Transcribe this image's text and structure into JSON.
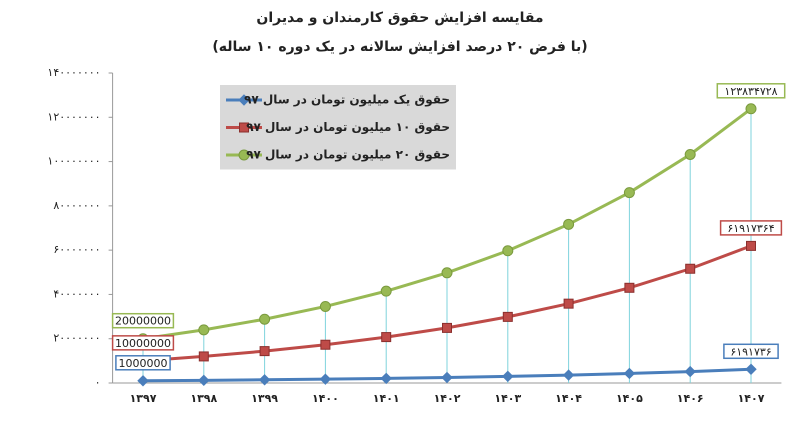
{
  "chart_data": {
    "type": "line",
    "title": "مقایسه افزایش حقوق کارمندان و مدیران",
    "subtitle": "(با فرض ۲۰ درصد افزایش سالانه در یک دوره ۱۰ ساله)",
    "categories": [
      "۱۳۹۷",
      "۱۳۹۸",
      "۱۳۹۹",
      "۱۴۰۰",
      "۱۴۰۱",
      "۱۴۰۲",
      "۱۴۰۳",
      "۱۴۰۴",
      "۱۴۰۵",
      "۱۴۰۶",
      "۱۴۰۷"
    ],
    "series": [
      {
        "name": "حقوق یک میلیون تومان در سال ۹۷",
        "color": "#4a7ebb",
        "marker": "diamond",
        "values": [
          1000000,
          1200000,
          1440000,
          1728000,
          2073600,
          2488320,
          2985984,
          3583181,
          4299817,
          5159780,
          6191736
        ],
        "value_labels": [
          "1000000",
          null,
          null,
          null,
          null,
          null,
          null,
          null,
          null,
          null,
          "۶۱۹۱۷۳۶"
        ]
      },
      {
        "name": "حقوق ۱۰ میلیون تومان در سال ۹۷",
        "color": "#be4b48",
        "marker": "square",
        "values": [
          10000000,
          12000000,
          14400000,
          17280000,
          20736000,
          24883200,
          29859840,
          35831808,
          42998170,
          51597804,
          61917364
        ],
        "value_labels": [
          "10000000",
          null,
          null,
          null,
          null,
          null,
          null,
          null,
          null,
          null,
          "۶۱۹۱۷۳۶۴"
        ]
      },
      {
        "name": "حقوق ۲۰ میلیون تومان در سال ۹۷",
        "color": "#98b954",
        "marker": "circle",
        "values": [
          20000000,
          24000000,
          28800000,
          34560000,
          41472000,
          49766400,
          59719680,
          71663616,
          85996339,
          103195607,
          123834728
        ],
        "value_labels": [
          "20000000",
          null,
          null,
          null,
          null,
          null,
          null,
          null,
          null,
          null,
          "۱۲۳۸۳۴۷۲۸"
        ]
      }
    ],
    "ylim": [
      0,
      140000000
    ],
    "yticks": [
      {
        "value": 0,
        "label": "۰"
      },
      {
        "value": 20000000,
        "label": "۲۰۰۰۰۰۰۰"
      },
      {
        "value": 40000000,
        "label": "۴۰۰۰۰۰۰۰"
      },
      {
        "value": 60000000,
        "label": "۶۰۰۰۰۰۰۰"
      },
      {
        "value": 80000000,
        "label": "۸۰۰۰۰۰۰۰"
      },
      {
        "value": 100000000,
        "label": "۱۰۰۰۰۰۰۰۰"
      },
      {
        "value": 120000000,
        "label": "۱۲۰۰۰۰۰۰۰"
      },
      {
        "value": 140000000,
        "label": "۱۴۰۰۰۰۰۰۰"
      }
    ],
    "drop_lines": true,
    "legend": "upper left"
  }
}
